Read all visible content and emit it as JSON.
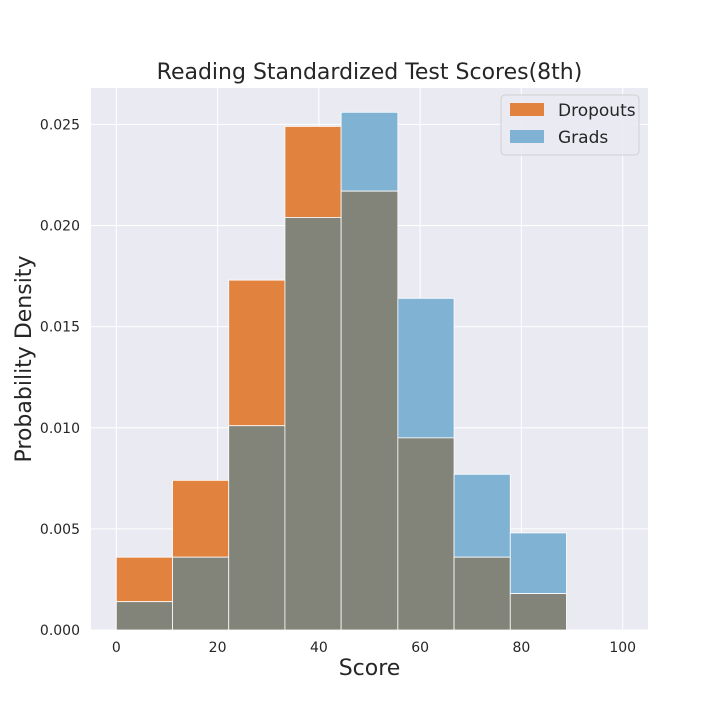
{
  "chart_data": {
    "type": "bar",
    "title": "Reading Standardized Test Scores(8th)",
    "xlabel": "Score",
    "ylabel": "Probability Density",
    "xlim": [
      -5,
      105
    ],
    "ylim": [
      0,
      0.0268
    ],
    "xticks": [
      0,
      20,
      40,
      60,
      80,
      100
    ],
    "yticks": [
      "0.000",
      "0.005",
      "0.010",
      "0.015",
      "0.020",
      "0.025"
    ],
    "bin_edges": [
      0,
      11.1,
      22.2,
      33.3,
      44.4,
      55.6,
      66.7,
      77.8,
      88.9
    ],
    "grid": true,
    "legend_position": "top-right",
    "series": [
      {
        "name": "Dropouts",
        "color": "#e1823f",
        "values": [
          0.0036,
          0.0074,
          0.0173,
          0.0249,
          0.0217,
          0.0095,
          0.0036,
          0.0018
        ]
      },
      {
        "name": "Grads",
        "color": "#7fb2d3",
        "values": [
          0.0014,
          0.0036,
          0.0101,
          0.0204,
          0.0256,
          0.0164,
          0.0077,
          0.0048
        ]
      }
    ],
    "overlap_color": "#828479"
  }
}
